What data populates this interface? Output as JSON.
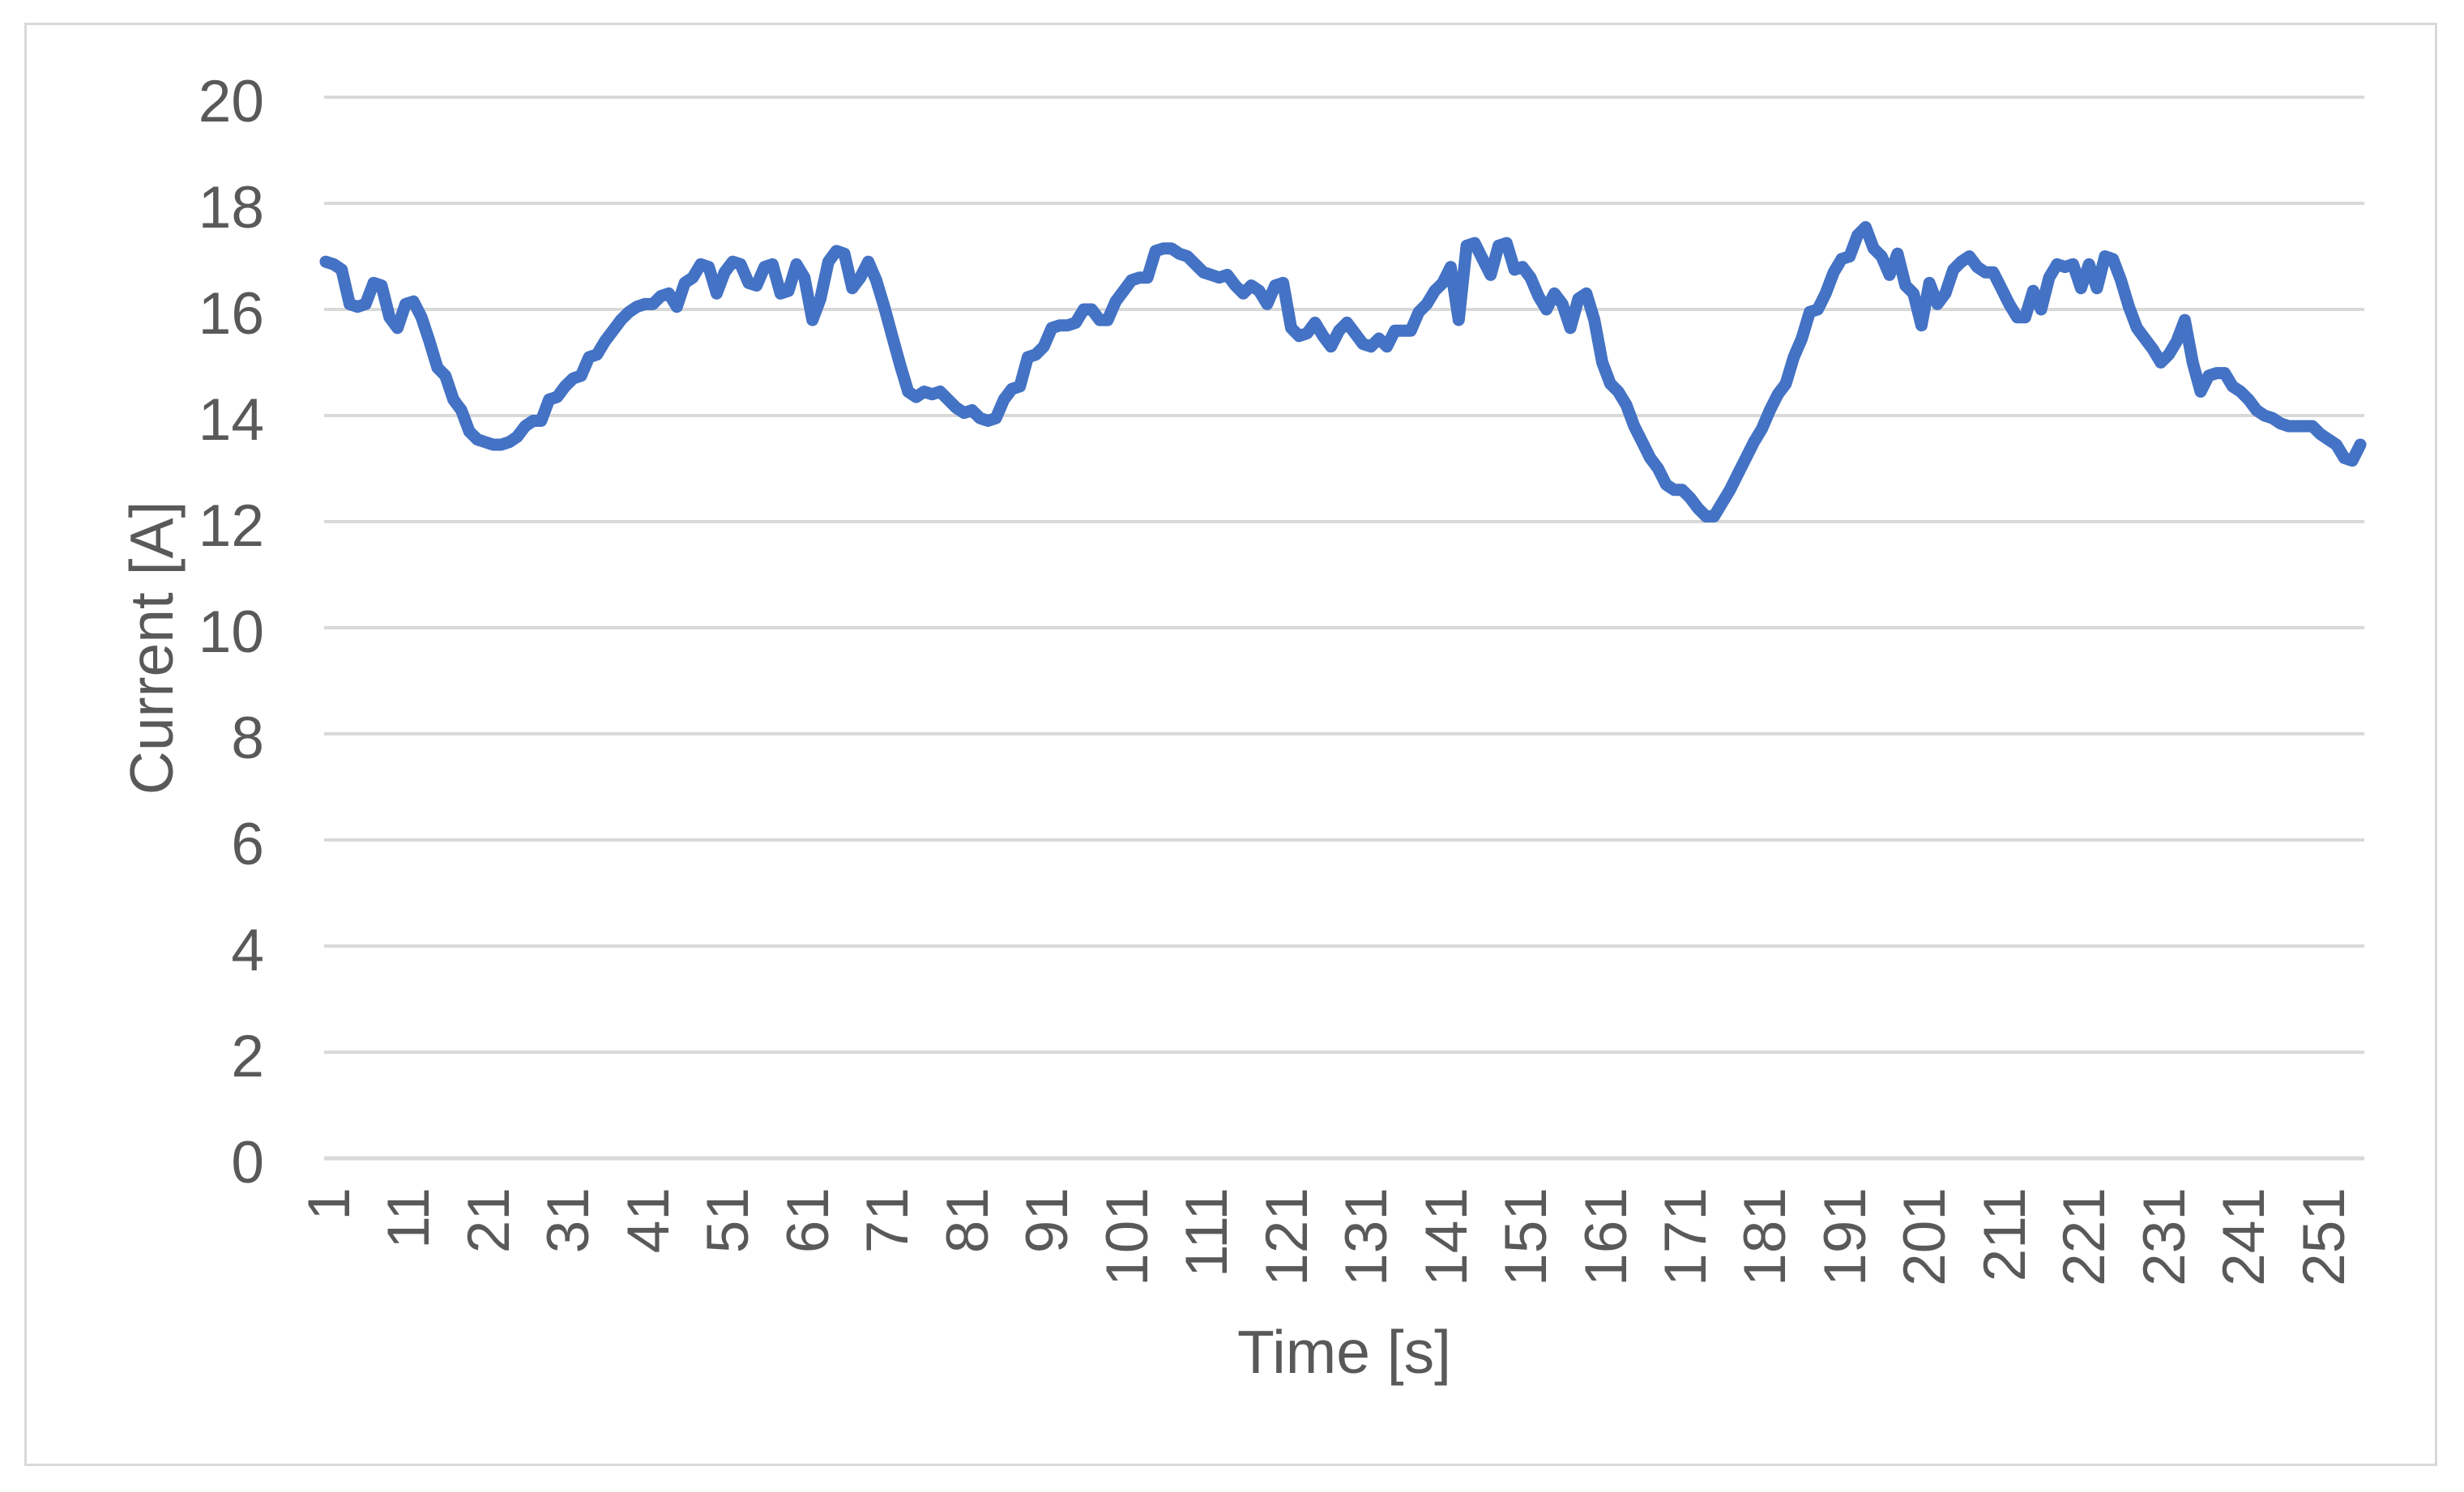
{
  "chart_data": {
    "type": "line",
    "title": "",
    "xlabel": "Time [s]",
    "ylabel": "Current [A]",
    "legend_position": "none",
    "grid": "horizontal",
    "ylim": [
      0,
      20
    ],
    "y_tick_step": 2,
    "y_tick_labels": [
      "0",
      "2",
      "4",
      "6",
      "8",
      "10",
      "12",
      "14",
      "16",
      "18",
      "20"
    ],
    "x_start": 1,
    "x_step": 1,
    "x_tick_labels": [
      "1",
      "11",
      "21",
      "31",
      "41",
      "51",
      "61",
      "71",
      "81",
      "91",
      "101",
      "111",
      "121",
      "131",
      "141",
      "151",
      "161",
      "171",
      "181",
      "191",
      "201",
      "211",
      "221",
      "231",
      "241",
      "251"
    ],
    "series": [
      {
        "name": "Current",
        "color": "#4472C4",
        "values": [
          16.9,
          16.85,
          16.75,
          16.1,
          16.05,
          16.1,
          16.5,
          16.45,
          15.85,
          15.65,
          16.1,
          16.15,
          15.85,
          15.4,
          14.9,
          14.75,
          14.3,
          14.1,
          13.7,
          13.55,
          13.5,
          13.45,
          13.45,
          13.5,
          13.6,
          13.8,
          13.9,
          13.9,
          14.3,
          14.35,
          14.55,
          14.7,
          14.75,
          15.1,
          15.15,
          15.4,
          15.6,
          15.8,
          15.95,
          16.05,
          16.1,
          16.1,
          16.25,
          16.3,
          16.05,
          16.5,
          16.6,
          16.85,
          16.8,
          16.3,
          16.7,
          16.9,
          16.85,
          16.5,
          16.45,
          16.8,
          16.85,
          16.3,
          16.35,
          16.85,
          16.6,
          15.8,
          16.2,
          16.9,
          17.1,
          17.05,
          16.4,
          16.6,
          16.9,
          16.55,
          16.05,
          15.5,
          14.95,
          14.45,
          14.35,
          14.45,
          14.4,
          14.45,
          14.3,
          14.15,
          14.05,
          14.1,
          13.95,
          13.9,
          13.95,
          14.3,
          14.5,
          14.55,
          15.1,
          15.15,
          15.3,
          15.65,
          15.7,
          15.7,
          15.75,
          16.0,
          16.0,
          15.8,
          15.8,
          16.15,
          16.35,
          16.55,
          16.6,
          16.6,
          17.1,
          17.15,
          17.15,
          17.05,
          17.0,
          16.85,
          16.7,
          16.65,
          16.6,
          16.65,
          16.45,
          16.3,
          16.45,
          16.35,
          16.1,
          16.45,
          16.5,
          15.65,
          15.5,
          15.55,
          15.75,
          15.5,
          15.3,
          15.6,
          15.75,
          15.55,
          15.35,
          15.3,
          15.45,
          15.3,
          15.6,
          15.6,
          15.6,
          15.95,
          16.1,
          16.35,
          16.5,
          16.8,
          15.8,
          17.2,
          17.25,
          16.95,
          16.65,
          17.2,
          17.25,
          16.75,
          16.8,
          16.6,
          16.25,
          16.0,
          16.3,
          16.1,
          15.65,
          16.2,
          16.3,
          15.8,
          15.0,
          14.6,
          14.45,
          14.2,
          13.8,
          13.5,
          13.2,
          13.0,
          12.7,
          12.6,
          12.6,
          12.45,
          12.25,
          12.1,
          12.1,
          12.35,
          12.6,
          12.9,
          13.2,
          13.5,
          13.75,
          14.1,
          14.4,
          14.6,
          15.1,
          15.45,
          15.95,
          16.0,
          16.3,
          16.7,
          16.95,
          17.0,
          17.4,
          17.55,
          17.15,
          17.0,
          16.65,
          17.05,
          16.45,
          16.3,
          15.7,
          16.5,
          16.1,
          16.3,
          16.75,
          16.9,
          17.0,
          16.8,
          16.7,
          16.7,
          16.4,
          16.1,
          15.85,
          15.85,
          16.35,
          16.0,
          16.6,
          16.85,
          16.8,
          16.85,
          16.4,
          16.85,
          16.4,
          17.0,
          16.95,
          16.55,
          16.05,
          15.65,
          15.45,
          15.25,
          15.0,
          15.15,
          15.4,
          15.8,
          15.0,
          14.45,
          14.75,
          14.8,
          14.8,
          14.55,
          14.45,
          14.3,
          14.1,
          14.0,
          13.95,
          13.85,
          13.8,
          13.8,
          13.8,
          13.8,
          13.65,
          13.55,
          13.45,
          13.2,
          13.15,
          13.45
        ]
      }
    ]
  },
  "colors": {
    "line": "#4472C4",
    "gridline": "#D9D9D9",
    "axis_line": "#D9D9D9",
    "border": "#D9D9D9",
    "label_text": "#595959",
    "background": "#FFFFFF"
  }
}
